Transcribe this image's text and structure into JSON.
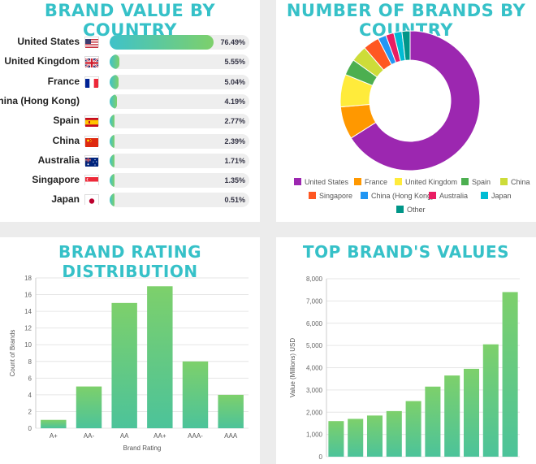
{
  "brand_value": {
    "title": "BRAND VALUE BY COUNTRY",
    "rows": [
      {
        "country": "United States",
        "percent": 76.49,
        "label": "76.49%"
      },
      {
        "country": "United Kingdom",
        "percent": 5.55,
        "label": "5.55%"
      },
      {
        "country": "France",
        "percent": 5.04,
        "label": "5.04%"
      },
      {
        "country": "China (Hong Kong)",
        "percent": 4.19,
        "label": "4.19%"
      },
      {
        "country": "Spain",
        "percent": 2.77,
        "label": "2.77%"
      },
      {
        "country": "China",
        "percent": 2.39,
        "label": "2.39%"
      },
      {
        "country": "Australia",
        "percent": 1.71,
        "label": "1.71%"
      },
      {
        "country": "Singapore",
        "percent": 1.35,
        "label": "1.35%"
      },
      {
        "country": "Japan",
        "percent": 0.51,
        "label": "0.51%"
      }
    ]
  },
  "chart_data": [
    {
      "type": "bar",
      "title": "BRAND VALUE BY COUNTRY",
      "categories": [
        "United States",
        "United Kingdom",
        "France",
        "China (Hong Kong)",
        "Spain",
        "China",
        "Australia",
        "Singapore",
        "Japan"
      ],
      "values": [
        76.49,
        5.55,
        5.04,
        4.19,
        2.77,
        2.39,
        1.71,
        1.35,
        0.51
      ],
      "orientation": "horizontal"
    },
    {
      "type": "pie",
      "title": "NUMBER OF BRANDS BY COUNTRY",
      "donut": true,
      "labels": [
        "United States",
        "France",
        "United Kingdom",
        "Spain",
        "China",
        "Singapore",
        "China (Hong Kong)",
        "Australia",
        "Japan",
        "Other"
      ],
      "values": [
        35,
        4,
        4,
        2,
        2,
        2,
        1,
        1,
        1,
        1
      ],
      "colors": [
        "#9c27b0",
        "#ff9800",
        "#ffeb3b",
        "#4caf50",
        "#cddc39",
        "#ff5722",
        "#2196f3",
        "#e91e63",
        "#00bcd4",
        "#009688"
      ],
      "legend_position": "bottom"
    },
    {
      "type": "bar",
      "title": "BRAND RATING DISTRIBUTION",
      "categories": [
        "A+",
        "AA-",
        "AA",
        "AA+",
        "AAA-",
        "AAA"
      ],
      "values": [
        1,
        5,
        15,
        17,
        8,
        4
      ],
      "xlabel": "Brand Rating",
      "ylabel": "Count of Brands",
      "ylim": [
        0,
        18
      ],
      "yticks": [
        0,
        2,
        4,
        6,
        8,
        10,
        12,
        14,
        16,
        18
      ]
    },
    {
      "type": "bar",
      "title": "TOP BRAND'S VALUES",
      "categories": [
        "",
        "",
        "",
        "",
        "",
        "",
        "",
        "",
        "",
        ""
      ],
      "values": [
        1600,
        1700,
        1850,
        2050,
        2500,
        3150,
        3650,
        3950,
        5050,
        7400
      ],
      "xlabel": "",
      "ylabel": "Value (Millions) USD",
      "ylim": [
        0,
        8000
      ],
      "yticks": [
        0,
        1000,
        2000,
        3000,
        4000,
        5000,
        6000,
        7000,
        8000
      ],
      "ytick_labels": [
        "0",
        "1,000",
        "2,000",
        "3,000",
        "4,000",
        "5,000",
        "6,000",
        "7,000",
        "8,000"
      ]
    }
  ],
  "brand_count": {
    "title": "NUMBER OF BRANDS BY COUNTRY"
  },
  "rating": {
    "title": "BRAND RATING DISTRIBUTION",
    "xlabel": "Brand Rating",
    "ylabel": "Count of Brands"
  },
  "top_values": {
    "title": "TOP BRAND'S VALUES",
    "ylabel": "Value (Millions) USD"
  },
  "colors": {
    "title": "#36c1c8",
    "bar_top": "#7dd06b",
    "bar_bottom": "#4cc39a",
    "grid": "#e6e6e6"
  },
  "flags": [
    "us-flag-icon",
    "uk-flag-icon",
    "france-flag-icon",
    "",
    "spain-flag-icon",
    "china-flag-icon",
    "australia-flag-icon",
    "singapore-flag-icon",
    "japan-flag-icon"
  ]
}
